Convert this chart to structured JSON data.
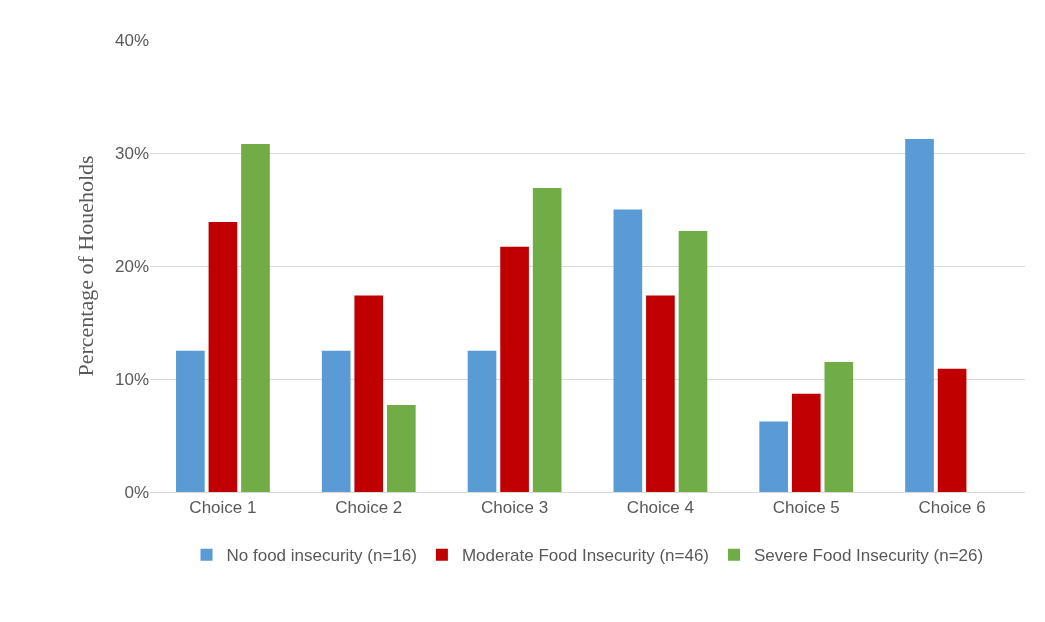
{
  "chart_data": {
    "type": "bar",
    "ylabel": "Percentage of Houeholds",
    "categories": [
      "Choice 1",
      "Choice 2",
      "Choice 3",
      "Choice 4",
      "Choice 5",
      "Choice 6"
    ],
    "series": [
      {
        "name": "No food insecurity (n=16)",
        "color": "#5b9bd5",
        "values": [
          12.5,
          12.5,
          12.5,
          25,
          6.25,
          31.25
        ]
      },
      {
        "name": "Moderate Food Insecurity (n=46)",
        "color": "#c00000",
        "values": [
          23.9,
          17.4,
          21.7,
          17.4,
          8.7,
          10.9
        ]
      },
      {
        "name": "Severe Food Insecurity (n=26)",
        "color": "#70ad47",
        "values": [
          30.8,
          7.7,
          26.9,
          23.1,
          11.5,
          0
        ]
      }
    ],
    "ylim": [
      0,
      40
    ],
    "yticks": [
      {
        "value": 0,
        "label": "0%"
      },
      {
        "value": 10,
        "label": "10%"
      },
      {
        "value": 20,
        "label": "20%"
      },
      {
        "value": 30,
        "label": "30%"
      },
      {
        "value": 40,
        "label": "40%"
      }
    ],
    "grid": "y",
    "legend": "bottom"
  }
}
